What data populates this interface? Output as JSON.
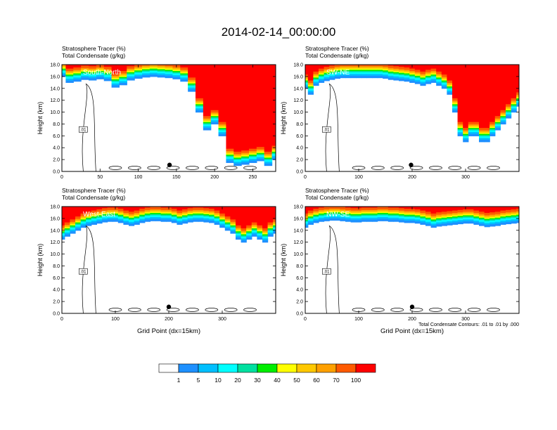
{
  "figure": {
    "title": "2014-02-14_00:00:00",
    "footnote": "Total Condensate Contours: .01 to .01 by .000"
  },
  "colorbar": {
    "levels": [
      "1",
      "5",
      "10",
      "20",
      "30",
      "40",
      "50",
      "60",
      "70",
      "100"
    ],
    "colors": [
      "#ffffff",
      "#1e90ff",
      "#00bfff",
      "#00ffff",
      "#00e0a0",
      "#00ee00",
      "#aaff33",
      "#ffff00",
      "#ffc800",
      "#ffa000",
      "#ff5a00",
      "#ff0000"
    ]
  },
  "chart_data": [
    {
      "type": "heatmap",
      "header_line1": "Stratosphere Tracer   (%)",
      "header_line2": "Total Condensate   (g/kg)",
      "section_label": "South-North",
      "ylabel": "Height (km)",
      "xlabel": "",
      "xlim": [
        0,
        280
      ],
      "ylim": [
        0,
        18
      ],
      "xticks": [
        "0",
        "50",
        "100",
        "150",
        "200",
        "250"
      ],
      "xtick_values": [
        0,
        50,
        100,
        150,
        200,
        250
      ],
      "yticks": [
        "0.0",
        "2.0",
        "4.0",
        "6.0",
        "8.0",
        "10.0",
        "12.0",
        "14.0",
        "16.0",
        "18.0"
      ],
      "marker_x": 141,
      "contour_label": ".01",
      "tracer_base_km": [
        16.0,
        15.0,
        15.2,
        15.5,
        15.4,
        15.6,
        15.3,
        14.2,
        14.6,
        15.4,
        15.7,
        15.9,
        16.0,
        15.9,
        15.8,
        15.6,
        15.2,
        13.5,
        10.0,
        7.0,
        8.0,
        6.0,
        1.5,
        1.0,
        1.2,
        1.5,
        1.8,
        1.0,
        2.0
      ]
    },
    {
      "type": "heatmap",
      "header_line1": "Stratosphere Tracer   (%)",
      "header_line2": "Total Condensate   (g/kg)",
      "section_label": "SW-NE",
      "ylabel": "Height (km)",
      "xlabel": "",
      "xlim": [
        0,
        400
      ],
      "ylim": [
        0,
        18
      ],
      "xticks": [
        "0",
        "100",
        "200",
        "300"
      ],
      "xtick_values": [
        0,
        100,
        200,
        300
      ],
      "yticks": [
        "0.0",
        "2.0",
        "4.0",
        "6.0",
        "8.0",
        "10.0",
        "12.0",
        "14.0",
        "16.0",
        "18.0"
      ],
      "marker_x": 198,
      "contour_label": ".01",
      "tracer_base_km": [
        14.0,
        13.0,
        14.5,
        15.0,
        15.3,
        15.5,
        15.7,
        15.8,
        15.8,
        15.8,
        15.8,
        15.8,
        15.8,
        15.8,
        15.8,
        15.7,
        15.5,
        15.4,
        15.3,
        15.2,
        15.0,
        14.8,
        14.5,
        14.8,
        15.0,
        14.5,
        14.0,
        13.0,
        10.0,
        6.0,
        5.0,
        6.0,
        6.0,
        5.0,
        5.0,
        6.0,
        7.0,
        8.0,
        9.0,
        10.0,
        11.0
      ]
    },
    {
      "type": "heatmap",
      "header_line1": "Stratosphere Tracer   (%)",
      "header_line2": "Total Condensate   (g/kg)",
      "section_label": "West-East",
      "ylabel": "Height (km)",
      "xlabel": "Grid Point (dx=15km)",
      "xlim": [
        0,
        400
      ],
      "ylim": [
        0,
        18
      ],
      "xticks": [
        "0",
        "100",
        "200",
        "300"
      ],
      "xtick_values": [
        0,
        100,
        200,
        300
      ],
      "yticks": [
        "0.0",
        "2.0",
        "4.0",
        "6.0",
        "8.0",
        "10.0",
        "12.0",
        "14.0",
        "16.0",
        "18.0"
      ],
      "marker_x": 200,
      "contour_label": ".01",
      "tracer_base_km": [
        12.5,
        13.0,
        13.5,
        14.0,
        14.5,
        14.8,
        15.0,
        15.2,
        15.4,
        15.5,
        15.5,
        15.3,
        15.0,
        14.8,
        15.0,
        15.3,
        15.5,
        15.6,
        15.6,
        15.5,
        15.5,
        15.3,
        15.0,
        15.2,
        15.4,
        15.5,
        15.5,
        15.4,
        15.3,
        15.0,
        14.5,
        14.0,
        13.5,
        12.5,
        12.0,
        12.5,
        13.0,
        12.5,
        12.0,
        13.0,
        13.5
      ]
    },
    {
      "type": "heatmap",
      "header_line1": "Stratosphere Tracer   (%)",
      "header_line2": "Total Condensate   (g/kg)",
      "section_label": "NW-SE",
      "ylabel": "Height (km)",
      "xlabel": "Grid Point (dx=15km)",
      "xlim": [
        0,
        400
      ],
      "ylim": [
        0,
        18
      ],
      "xticks": [
        "0",
        "100",
        "200",
        "300"
      ],
      "xtick_values": [
        0,
        100,
        200,
        300
      ],
      "yticks": [
        "0.0",
        "2.0",
        "4.0",
        "6.0",
        "8.0",
        "10.0",
        "12.0",
        "14.0",
        "16.0",
        "18.0"
      ],
      "marker_x": 200,
      "contour_label": ".01",
      "tracer_base_km": [
        14.5,
        15.0,
        15.3,
        15.5,
        15.6,
        15.7,
        15.7,
        15.6,
        15.5,
        15.4,
        15.4,
        15.5,
        15.5,
        15.5,
        15.6,
        15.6,
        15.5,
        15.5,
        15.4,
        15.3,
        15.3,
        15.2,
        15.0,
        14.8,
        14.5,
        14.7,
        14.8,
        14.9,
        15.0,
        15.1,
        15.2,
        15.2,
        15.0,
        14.8,
        14.6,
        14.7,
        14.8,
        15.0,
        15.1,
        15.2,
        15.3
      ]
    }
  ]
}
